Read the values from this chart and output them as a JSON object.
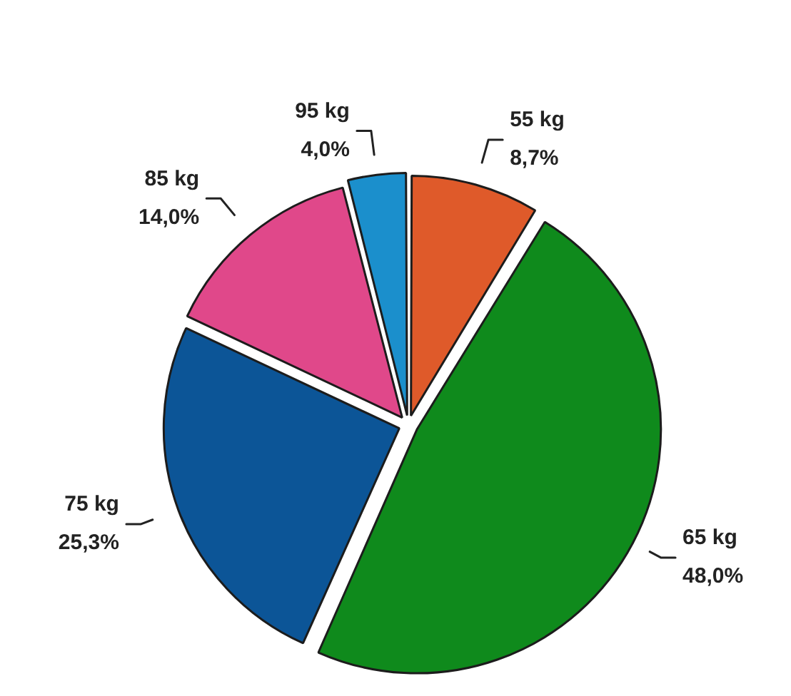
{
  "chart_data": {
    "type": "pie",
    "categories": [
      "55 kg",
      "65 kg",
      "75 kg",
      "85 kg",
      "95 kg"
    ],
    "values": [
      8.7,
      48.0,
      25.3,
      14.0,
      4.0
    ],
    "colors": [
      "#df5a2a",
      "#0f8a1c",
      "#0c5597",
      "#e0488a",
      "#1b8fcc"
    ],
    "value_labels": [
      "8,7%",
      "48,0%",
      "25,3%",
      "14,0%",
      "4,0%"
    ]
  }
}
